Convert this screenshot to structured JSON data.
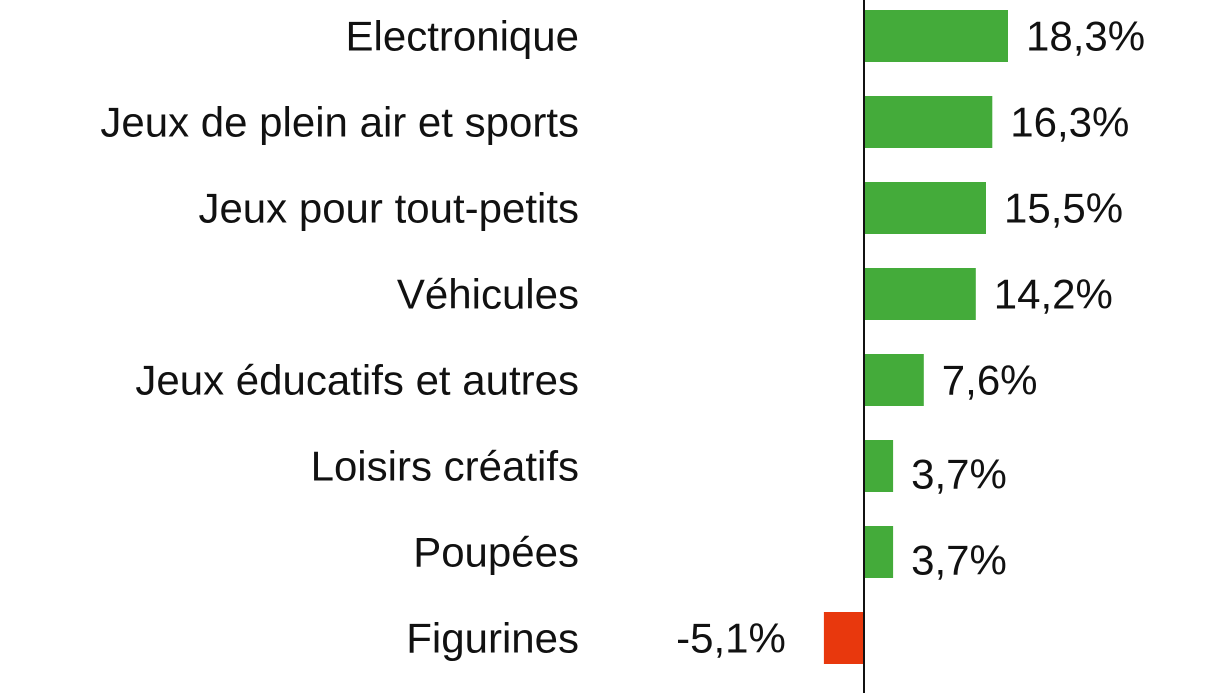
{
  "chart_data": {
    "type": "bar",
    "orientation": "horizontal",
    "categories": [
      "Electronique",
      "Jeux de plein air et sports",
      "Jeux pour tout-petits",
      "Véhicules",
      "Jeux éducatifs et autres",
      "Loisirs créatifs",
      "Poupées",
      "Figurines"
    ],
    "values": [
      18.3,
      16.3,
      15.5,
      14.2,
      7.6,
      3.7,
      3.7,
      -5.1
    ],
    "value_labels": [
      "18,3%",
      "16,3%",
      "15,5%",
      "14,2%",
      "7,6%",
      "3,7%",
      "3,7%",
      "-5,1%"
    ],
    "title": "",
    "xlabel": "",
    "ylabel": "",
    "grid": false,
    "legend": "none",
    "colors": {
      "positive": "#44ab3a",
      "negative": "#e8380d",
      "axis": "#111111"
    }
  }
}
